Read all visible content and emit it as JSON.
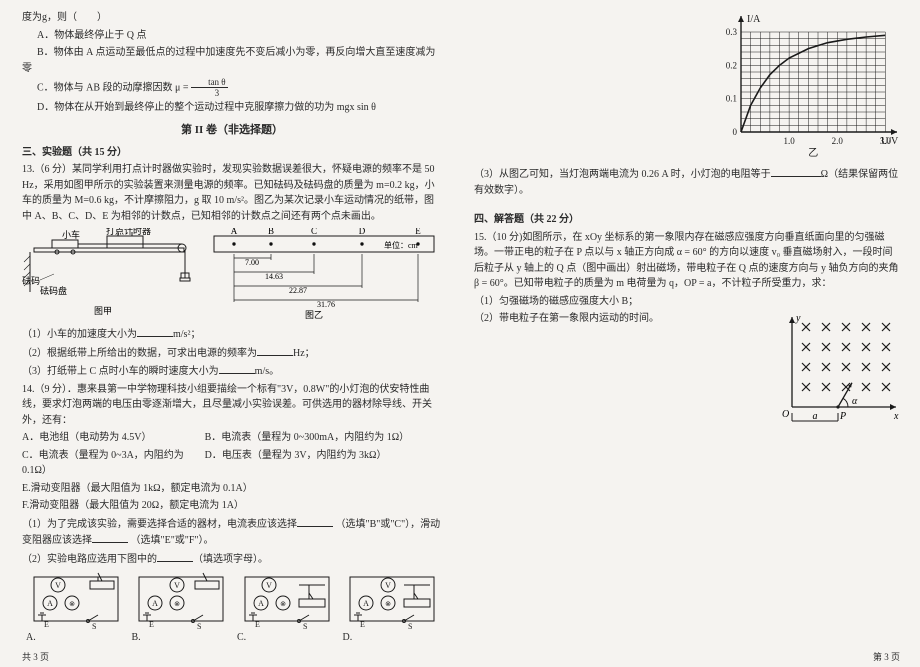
{
  "left": {
    "pre": "度为g，则（　　）",
    "optA": "A．物体最终停止于 Q 点",
    "optB": "B．物体由 A 点运动至最低点的过程中加速度先不变后减小为零，再反向增大直至速度减为零",
    "optC_prefix": "C．物体与 AB 段的动摩擦因数 μ = ",
    "optC_num": "tan θ",
    "optC_den": "3",
    "optD": "D．物体在从开始到最终停止的整个运动过程中克服摩擦力做的功为 mgx sin θ",
    "part2_title": "第 II 卷（非选择题）",
    "sec3": "三、实验题（共 15 分）",
    "q13a": "13.（6 分）某同学利用打点计时器做实验时，发现实验数据误差很大，怀疑电源的频率不是 50 Hz，采用如图甲所示的实验装置来测量电源的频率。已知砝码及砝码盘的质量为 m=0.2 kg，小车的质量为 M=0.6 kg，不计摩擦阻力，g 取 10 m/s²。图乙为某次记录小车运动情况的纸带，图中 A、B、C、D、E 为相邻的计数点，已知相邻的计数点之间还有两个点未画出。",
    "app_labels": {
      "car": "小车",
      "timer": "打点计时器",
      "weight": "砝码",
      "plate": "砝码盘",
      "cap": "图甲"
    },
    "tape": {
      "pts": [
        "A",
        "B",
        "C",
        "D",
        "E"
      ],
      "unit": "单位：cm",
      "m": [
        "7.00",
        "14.63",
        "22.87",
        "31.76"
      ],
      "cap": "图乙"
    },
    "q13_1a": "（1）小车的加速度大小为",
    "q13_1b": "m/s²；",
    "q13_2a": "（2）根据纸带上所给出的数据，可求出电源的频率为",
    "q13_2b": "Hz；",
    "q13_3a": "（3）打纸带上 C 点时小车的瞬时速度大小为",
    "q13_3b": "m/s。",
    "q14a": "14.（9 分）．惠来县第一中学物理科技小组要描绘一个标有\"3V，0.8W\"的小灯泡的伏安特性曲线，要求灯泡两端的电压由零逐渐增大，且尽量减小实验误差。可供选用的器材除导线、开关外，还有：",
    "q14A": "A．电池组（电动势为 4.5V）",
    "q14B": "B．电流表（量程为 0~300mA，内阻约为 1Ω）",
    "q14C": "C．电流表（量程为 0~3A，内阻约为 0.1Ω）",
    "q14D": "D．电压表（量程为 3V，内阻约为 3kΩ）",
    "q14E": "E.滑动变阻器（最大阻值为 1kΩ，额定电流为 0.1A）",
    "q14F": "F.滑动变阻器（最大阻值为 20Ω，额定电流为 1A）",
    "q14_1a": "（1）为了完成该实验，需要选择合适的器材，电流表应该选择",
    "q14_1b": "（选填\"B\"或\"C\"），滑动变阻器应该选择",
    "q14_1c": "（选填\"E\"或\"F\"）。",
    "q14_2a": "（2）实验电路应选用下图中的",
    "q14_2b": "（填选项字母）。",
    "circ_labels": [
      "A.",
      "B.",
      "C.",
      "D."
    ]
  },
  "right": {
    "chart": {
      "y_label": "I/A",
      "x_label": "U/V",
      "sub": "乙",
      "y_ticks": [
        "0",
        "0.1",
        "0.2",
        "0.3"
      ],
      "x_ticks": [
        "1.0",
        "2.0",
        "3.0"
      ],
      "xlim": [
        0,
        3.2
      ],
      "ylim": [
        0,
        0.33
      ],
      "grid_minor": 0.2,
      "curve_pts": [
        [
          0,
          0
        ],
        [
          0.2,
          0.08
        ],
        [
          0.4,
          0.132
        ],
        [
          0.6,
          0.172
        ],
        [
          0.8,
          0.2
        ],
        [
          1.0,
          0.222
        ],
        [
          1.4,
          0.25
        ],
        [
          1.8,
          0.268
        ],
        [
          2.2,
          0.278
        ],
        [
          2.6,
          0.285
        ],
        [
          3.0,
          0.29
        ]
      ],
      "line_w": 1.6,
      "color": "#1a1a1a"
    },
    "q3a": "（3）从图乙可知，当灯泡两端电流为 0.26 A 时，小灯泡的电阻等于",
    "q3b": "Ω（结果保留两位有效数字）。",
    "sec4": "四、解答题（共 22 分）",
    "q15": "15.（10 分)如图所示，在 xOy 坐标系的第一象限内存在磁感应强度方向垂直纸面向里的匀强磁场。一带正电的粒子在 P 点以与 x 轴正方向成 α = 60° 的方向以速度 v₀ 垂直磁场射入，一段时间后粒子从 y 轴上的 Q 点（图中画出）射出磁场，带电粒子在 Q 点的速度方向与 y 轴负方向的夹角 β = 60°。已知带电粒子的质量为 m 电荷量为 q，OP = a，不计粒子所受重力，求：",
    "q15_1": "（1）匀强磁场的磁感应强度大小 B；",
    "q15_2": "（2）带电粒子在第一象限内运动的时间。",
    "field": {
      "axis_x": "x",
      "axis_y": "y",
      "O": "O",
      "P": "P",
      "a": "a",
      "alpha": "α",
      "cross_color": "#1a1a1a"
    }
  },
  "footer_l": "共 3 页",
  "footer_r": "第 3 页"
}
